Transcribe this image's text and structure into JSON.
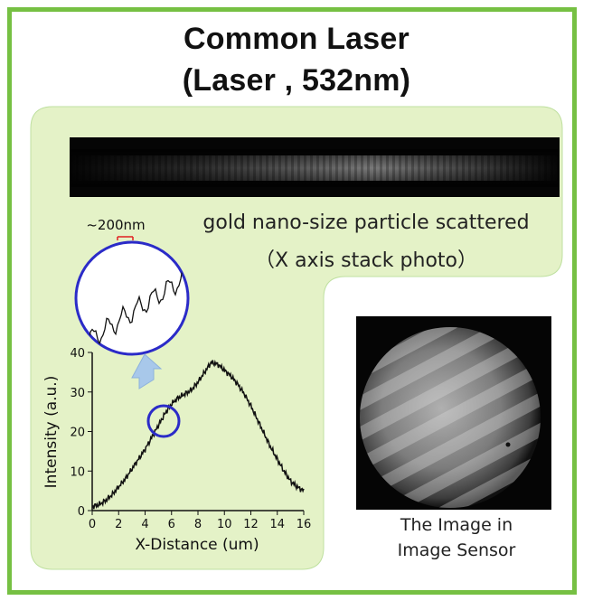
{
  "title": {
    "line1": "Common Laser",
    "line2": "(Laser , 532nm)"
  },
  "stack_photo": {
    "caption_line1": "gold nano-size particle scattered",
    "caption_line2": "（X axis stack photo）"
  },
  "inset": {
    "scale_label": "~200nm"
  },
  "image_sensor": {
    "caption_line1": "The Image in",
    "caption_line2": "Image Sensor"
  },
  "colors": {
    "frame_green": "#76c043",
    "panel_fill": "#e4f2c7",
    "magnifier_blue": "#2b2bc8",
    "arrow_blue": "#a8c8ea",
    "scale_red": "#e02020"
  },
  "chart_data": {
    "type": "line",
    "title": "",
    "xlabel": "X-Distance (um)",
    "ylabel": "Intensity (a.u.)",
    "xlim": [
      0,
      16
    ],
    "ylim": [
      0,
      40
    ],
    "xticks": [
      0,
      2,
      4,
      6,
      8,
      10,
      12,
      14,
      16
    ],
    "yticks": [
      0,
      10,
      20,
      30,
      40
    ],
    "grid": false,
    "series": [
      {
        "x": [
          0,
          0.5,
          1,
          1.5,
          2,
          2.5,
          3,
          3.5,
          4,
          4.5,
          5,
          5.5,
          6,
          6.5,
          7,
          7.5,
          8,
          8.5,
          9,
          9.5,
          10,
          10.5,
          11,
          11.5,
          12,
          12.5,
          13,
          13.5,
          14,
          14.5,
          15,
          15.5,
          16
        ],
        "y": [
          1,
          1.5,
          2.5,
          4,
          6,
          8,
          10.5,
          13,
          15.5,
          18.5,
          21.5,
          24.5,
          27,
          28.5,
          29.5,
          30.5,
          32.5,
          35,
          37.5,
          37,
          35.5,
          34,
          32,
          29.5,
          26.5,
          23,
          19.5,
          16,
          13,
          10,
          7.5,
          6,
          5
        ]
      }
    ]
  }
}
